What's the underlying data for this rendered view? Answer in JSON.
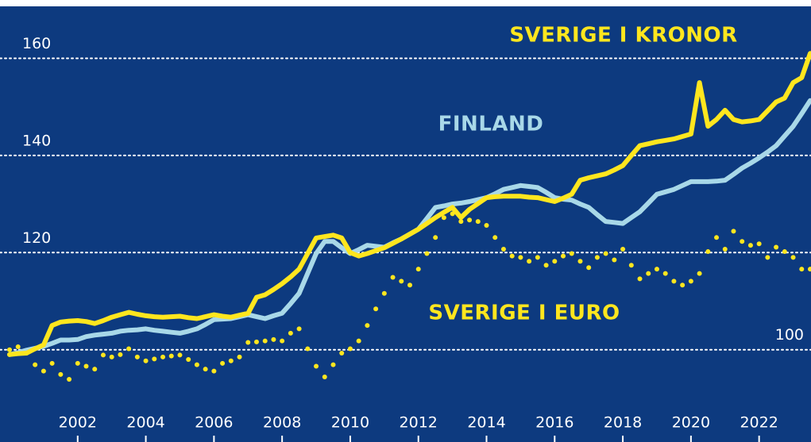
{
  "chart_data": {
    "type": "line",
    "xlim": [
      2000,
      2023.5
    ],
    "xticks": [
      2002,
      2004,
      2006,
      2008,
      2010,
      2012,
      2014,
      2016,
      2018,
      2020,
      2022
    ],
    "ylim": [
      81,
      172
    ],
    "yticks": [
      100,
      120,
      140,
      160
    ],
    "grid": true,
    "x": [
      2000,
      2000.25,
      2000.5,
      2000.75,
      2001,
      2001.25,
      2001.5,
      2001.75,
      2002,
      2002.25,
      2002.5,
      2002.75,
      2003,
      2003.25,
      2003.5,
      2003.75,
      2004,
      2004.25,
      2004.5,
      2004.75,
      2005,
      2005.25,
      2005.5,
      2005.75,
      2006,
      2006.25,
      2006.5,
      2006.75,
      2007,
      2007.25,
      2007.5,
      2007.75,
      2008,
      2008.25,
      2008.5,
      2008.75,
      2009,
      2009.25,
      2009.5,
      2009.75,
      2010,
      2010.25,
      2010.5,
      2010.75,
      2011,
      2011.25,
      2011.5,
      2011.75,
      2012,
      2012.25,
      2012.5,
      2012.75,
      2013,
      2013.25,
      2013.5,
      2013.75,
      2014,
      2014.25,
      2014.5,
      2014.75,
      2015,
      2015.25,
      2015.5,
      2015.75,
      2016,
      2016.25,
      2016.5,
      2016.75,
      2017,
      2017.25,
      2017.5,
      2017.75,
      2018,
      2018.25,
      2018.5,
      2018.75,
      2019,
      2019.25,
      2019.5,
      2019.75,
      2020,
      2020.25,
      2020.5,
      2020.75,
      2021,
      2021.25,
      2021.5,
      2021.75,
      2022,
      2022.25,
      2022.5,
      2022.75,
      2023,
      2023.25,
      2023.5
    ],
    "series": [
      {
        "name": "FINLAND",
        "color": "#a8d8e8",
        "style": "line",
        "values": [
          99,
          99.4,
          99.9,
          100.3,
          100.7,
          101.3,
          102,
          102,
          102.1,
          102.7,
          103,
          103.2,
          103.4,
          103.8,
          104,
          104.1,
          104.3,
          104,
          103.8,
          103.6,
          103.4,
          103.8,
          104.3,
          105.2,
          106.2,
          106.3,
          106.4,
          106.8,
          107.2,
          106.8,
          106.4,
          107,
          107.5,
          109.5,
          111.6,
          115.7,
          119.8,
          122.3,
          122.3,
          121,
          119.8,
          120.6,
          121.5,
          121.3,
          121.1,
          122,
          122.8,
          123.8,
          124.8,
          127,
          129.3,
          129.6,
          130,
          130.2,
          130.5,
          130.9,
          131.3,
          132.1,
          133,
          133.4,
          133.8,
          133.6,
          133.4,
          132.4,
          131.3,
          131,
          130.8,
          130,
          129.3,
          127.8,
          126.4,
          126.2,
          126,
          127.2,
          128.4,
          130.2,
          132,
          132.5,
          133,
          133.8,
          134.6,
          134.6,
          134.6,
          134.7,
          134.9,
          136.1,
          137.4,
          138.4,
          139.5,
          140.7,
          142,
          144,
          146,
          148.6,
          151.3
        ]
      },
      {
        "name": "SVERIGE I KRONOR",
        "color": "#ffe61e",
        "style": "line",
        "values": [
          99,
          99.2,
          99.3,
          100.2,
          101,
          105,
          105.7,
          105.9,
          106,
          105.8,
          105.4,
          106,
          106.7,
          107.2,
          107.7,
          107.3,
          107,
          106.8,
          106.7,
          106.8,
          106.9,
          106.6,
          106.4,
          106.8,
          107.2,
          106.9,
          106.7,
          107.1,
          107.5,
          110.8,
          111.3,
          112.4,
          113.6,
          115,
          116.6,
          119.8,
          123,
          123.3,
          123.6,
          123,
          120,
          119.3,
          119.8,
          120.4,
          121,
          121.9,
          122.8,
          123.8,
          124.8,
          126,
          127.2,
          128.3,
          129.3,
          127.2,
          128.9,
          130.1,
          131.3,
          131.5,
          131.6,
          131.6,
          131.6,
          131.4,
          131.3,
          130.9,
          130.5,
          131.2,
          132,
          134.9,
          135.4,
          135.8,
          136.2,
          137,
          137.9,
          140,
          142,
          142.4,
          142.8,
          143.1,
          143.4,
          143.9,
          144.4,
          155,
          146,
          147.4,
          149.3,
          147.4,
          146.9,
          147.1,
          147.4,
          149.2,
          151,
          151.8,
          155,
          156,
          161
        ]
      },
      {
        "name": "SVERIGE I EURO",
        "color": "#ffe61e",
        "style": "dots",
        "values": [
          100,
          100.6,
          99.3,
          96.9,
          95.6,
          97.2,
          94.9,
          93.9,
          97.2,
          96.6,
          96,
          98.9,
          98.5,
          99,
          100.2,
          98.5,
          97.7,
          98.1,
          98.5,
          98.7,
          98.9,
          98,
          96.9,
          96,
          95.6,
          97.2,
          97.7,
          98.5,
          101.5,
          101.6,
          101.8,
          102.1,
          101.8,
          103.4,
          104.3,
          100.2,
          96.6,
          94.4,
          96.9,
          99.3,
          100.2,
          101.8,
          105,
          108.4,
          111.6,
          114.9,
          114.1,
          113.3,
          116.6,
          119.8,
          123.1,
          127.2,
          128,
          126.4,
          126.7,
          126.4,
          125.6,
          123.1,
          120.7,
          119.3,
          119,
          118.2,
          119,
          117.4,
          118.2,
          119.3,
          119.8,
          118.2,
          116.9,
          119,
          119.8,
          118.5,
          120.7,
          117.4,
          114.6,
          115.7,
          116.6,
          115.7,
          114.1,
          113.3,
          114.1,
          115.7,
          120.2,
          123.1,
          120.7,
          124.4,
          122.3,
          121.5,
          121.8,
          119,
          121.1,
          120.2,
          119,
          116.6,
          116.6
        ]
      }
    ]
  }
}
